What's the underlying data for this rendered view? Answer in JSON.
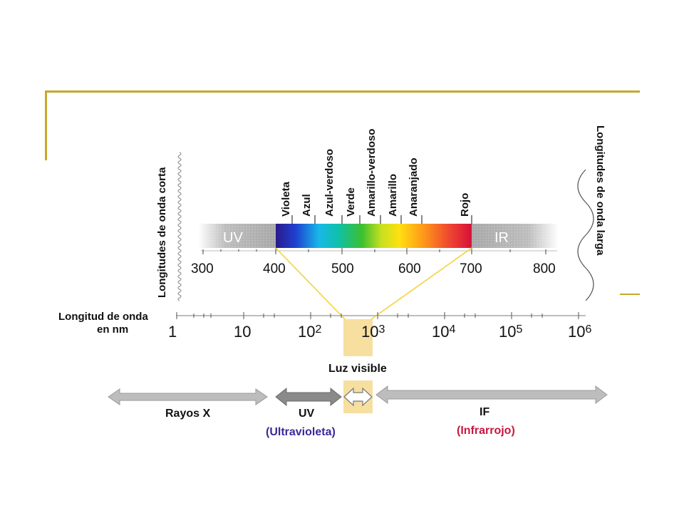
{
  "side_labels": {
    "short": "Longitudes de onda corta",
    "long": "Longitudes de onda larga"
  },
  "colors": {
    "accent_rule": "#C8A82A",
    "visible_highlight": "#F7DFA0",
    "projection_line": "#F3D23C",
    "uv_label_color": "#3A2A9A",
    "ir_label_color": "#C8183C"
  },
  "spectrum": {
    "color_names": [
      "Violeta",
      "Azul",
      "Azul-verdoso",
      "Verde",
      "Amarillo-verdoso",
      "Amarillo",
      "Anaranjado",
      "Rojo"
    ],
    "uv_label": "UV",
    "ir_label": "IR",
    "ticks": [
      "300",
      "400",
      "500",
      "600",
      "700",
      "800"
    ]
  },
  "wavelength_axis": {
    "title_line1": "Longitud de onda",
    "title_line2": "en nm",
    "ticks": [
      {
        "base": "1",
        "exp": ""
      },
      {
        "base": "10",
        "exp": ""
      },
      {
        "base": "10",
        "exp": "2"
      },
      {
        "base": "10",
        "exp": "3"
      },
      {
        "base": "10",
        "exp": "4"
      },
      {
        "base": "10",
        "exp": "5"
      },
      {
        "base": "10",
        "exp": "6"
      }
    ]
  },
  "visible_label": "Luz visible",
  "bands": {
    "xray": "Rayos X",
    "uv": "UV",
    "uv_full": "(Ultravioleta)",
    "ir": "IF",
    "ir_full": "(Infrarrojo)"
  }
}
